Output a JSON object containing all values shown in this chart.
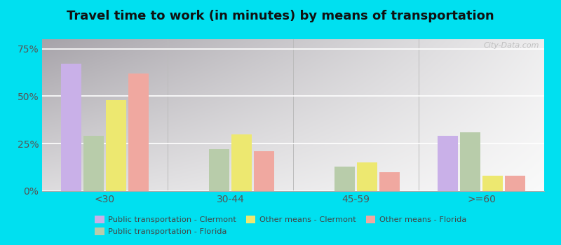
{
  "title": "Travel time to work (in minutes) by means of transportation",
  "categories": [
    "<30",
    "30-44",
    "45-59",
    ">=60"
  ],
  "series": {
    "Public transportation - Clermont": [
      67,
      0,
      0,
      29
    ],
    "Public transportation - Florida": [
      29,
      22,
      13,
      31
    ],
    "Other means - Clermont": [
      48,
      30,
      15,
      8
    ],
    "Other means - Florida": [
      62,
      21,
      10,
      8
    ]
  },
  "colors": {
    "Public transportation - Clermont": "#c9b0e8",
    "Public transportation - Florida": "#b8ccaa",
    "Other means - Clermont": "#ede870",
    "Other means - Florida": "#f0a8a0"
  },
  "bar_order": [
    "Public transportation - Clermont",
    "Public transportation - Florida",
    "Other means - Clermont",
    "Other means - Florida"
  ],
  "legend_row1": [
    "Public transportation - Clermont",
    "Public transportation - Florida",
    "Other means - Clermont"
  ],
  "legend_row2": [
    "Other means - Florida"
  ],
  "yticks": [
    0,
    25,
    50,
    75
  ],
  "ytick_labels": [
    "0%",
    "25%",
    "50%",
    "75%"
  ],
  "ylim": [
    0,
    80
  ],
  "background_color_top": "#d8efd0",
  "background_color_bottom": "#f0f8ea",
  "outer_background": "#00e0f0",
  "title_fontsize": 13,
  "watermark": "City-Data.com"
}
